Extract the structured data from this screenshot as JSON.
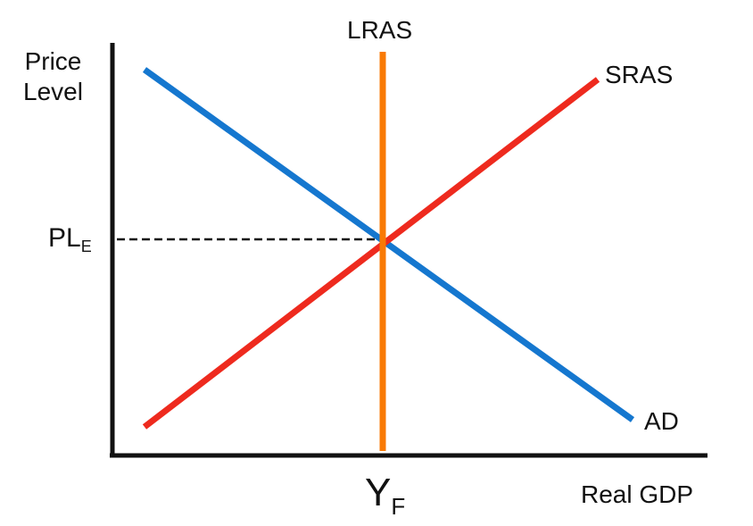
{
  "axes": {
    "y_label_line1": "Price",
    "y_label_line2": "Level",
    "x_label": "Real GDP"
  },
  "curves": {
    "lras": {
      "label": "LRAS",
      "color": "#f97a05"
    },
    "sras": {
      "label": "SRAS",
      "color": "#ee2a1e"
    },
    "ad": {
      "label": "AD",
      "color": "#1577cf"
    }
  },
  "equilibrium": {
    "price_label": "PL",
    "price_subscript": "E",
    "output_label": "Y",
    "output_subscript": "F"
  },
  "colors": {
    "axis": "#111111",
    "guide_line": "#111111"
  }
}
